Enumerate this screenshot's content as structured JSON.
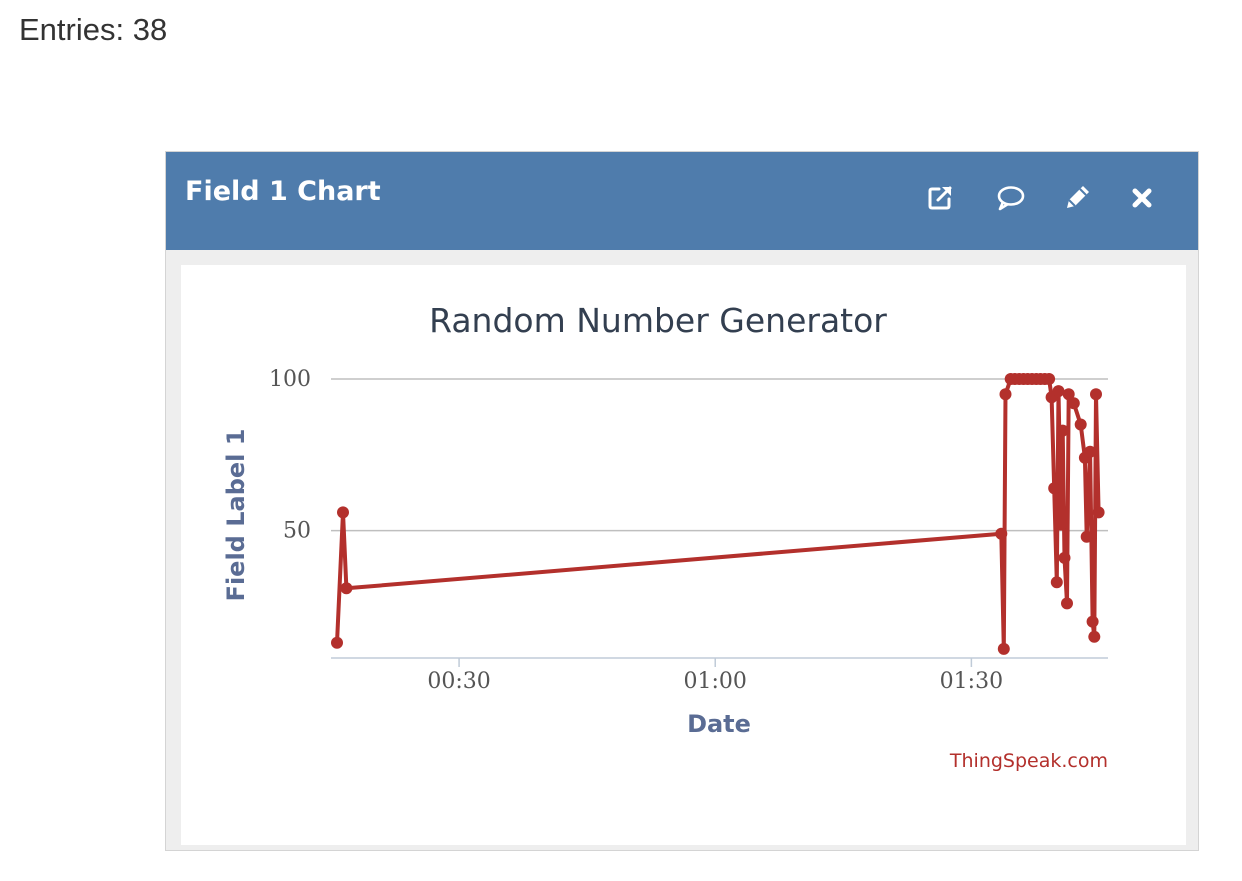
{
  "entries_label": "Entries: 38",
  "widget": {
    "title": "Field 1 Chart",
    "icons": [
      "external-link-icon",
      "comment-icon",
      "pencil-icon",
      "close-icon"
    ],
    "header_color": "#4f7cac"
  },
  "chart_data": {
    "type": "line",
    "title": "Random Number Generator",
    "xlabel": "Date",
    "ylabel": "Field Label 1",
    "credit": "ThingSpeak.com",
    "x_unit": "time of day (HH:MM:SS)",
    "xlim": [
      "00:15:00",
      "01:46:00"
    ],
    "ylim": [
      8,
      100
    ],
    "yticks": [
      50,
      100
    ],
    "xticks": [
      "00:30",
      "01:00",
      "01:30"
    ],
    "x_tick_values": [
      "00:30:00",
      "01:00:00",
      "01:30:00"
    ],
    "color": "#b3302c",
    "grid": true,
    "series": [
      {
        "values": [
          {
            "x": "00:15:42",
            "y": 13
          },
          {
            "x": "00:16:24",
            "y": 56
          },
          {
            "x": "00:16:48",
            "y": 31
          },
          {
            "x": "01:33:30",
            "y": 49
          },
          {
            "x": "01:33:48",
            "y": 11
          },
          {
            "x": "01:34:00",
            "y": 95
          },
          {
            "x": "01:34:36",
            "y": 100
          },
          {
            "x": "01:35:06",
            "y": 100
          },
          {
            "x": "01:35:36",
            "y": 100
          },
          {
            "x": "01:36:06",
            "y": 100
          },
          {
            "x": "01:36:36",
            "y": 100
          },
          {
            "x": "01:37:06",
            "y": 100
          },
          {
            "x": "01:37:36",
            "y": 100
          },
          {
            "x": "01:38:06",
            "y": 100
          },
          {
            "x": "01:38:36",
            "y": 100
          },
          {
            "x": "01:39:06",
            "y": 100
          },
          {
            "x": "01:39:24",
            "y": 94
          },
          {
            "x": "01:39:42",
            "y": 64
          },
          {
            "x": "01:40:00",
            "y": 33
          },
          {
            "x": "01:40:12",
            "y": 96
          },
          {
            "x": "01:40:30",
            "y": 52
          },
          {
            "x": "01:40:42",
            "y": 83
          },
          {
            "x": "01:40:54",
            "y": 41
          },
          {
            "x": "01:41:12",
            "y": 26
          },
          {
            "x": "01:41:24",
            "y": 95
          },
          {
            "x": "01:42:00",
            "y": 92
          },
          {
            "x": "01:42:48",
            "y": 85
          },
          {
            "x": "01:43:18",
            "y": 74
          },
          {
            "x": "01:43:30",
            "y": 48
          },
          {
            "x": "01:43:54",
            "y": 76
          },
          {
            "x": "01:44:12",
            "y": 20
          },
          {
            "x": "01:44:24",
            "y": 15
          },
          {
            "x": "01:44:36",
            "y": 95
          },
          {
            "x": "01:44:54",
            "y": 56
          }
        ]
      }
    ]
  }
}
